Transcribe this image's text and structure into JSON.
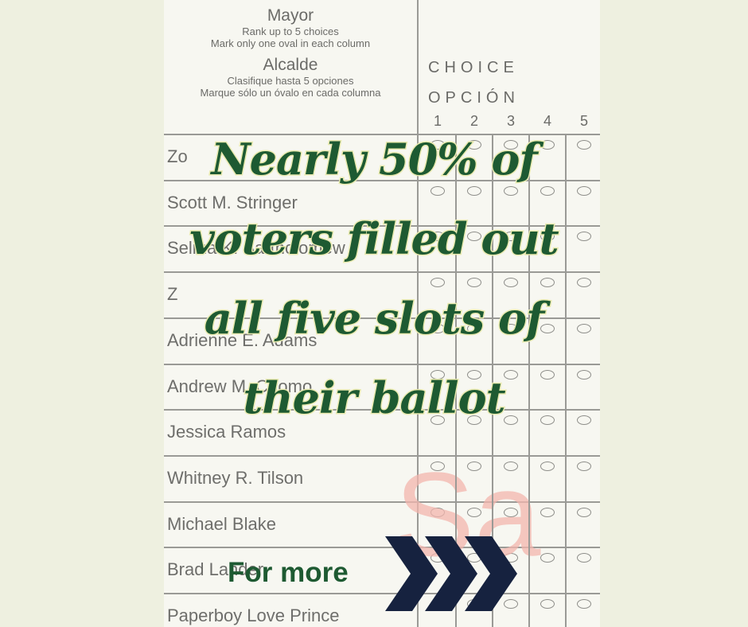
{
  "ballot": {
    "header": {
      "title_en": "Mayor",
      "sub_en_1": "Rank up to 5 choices",
      "sub_en_2": "Mark only one oval in each column",
      "title_es": "Alcalde",
      "sub_es_1": "Clasifique hasta 5 opciones",
      "sub_es_2": "Marque sólo un óvalo en cada columna"
    },
    "choice_en": "CHOICE",
    "choice_es": "OPCIÓN",
    "columns": [
      "1",
      "2",
      "3",
      "4",
      "5"
    ],
    "candidates": [
      "Zo",
      "Scott M. Stringer",
      "Selma K. Bartholomew",
      "Z",
      "Adrienne E. Adams",
      "Andrew M. Cuomo",
      "Jessica Ramos",
      "Whitney R. Tilson",
      "Michael Blake",
      "Brad Lander",
      "Paperboy Love Prince"
    ],
    "watermark": "Sa"
  },
  "headline": {
    "lines": [
      "Nearly 50% of",
      "voters filled out",
      "all five slots of",
      "their ballot"
    ]
  },
  "cta": {
    "label": "For more",
    "icon": "triple-chevron-right-icon"
  },
  "colors": {
    "background": "#eef0e0",
    "headline_fill": "#1e5a32",
    "headline_outline": "#e9eab0",
    "arrow": "#16223f",
    "watermark": "#f3b6ae"
  }
}
